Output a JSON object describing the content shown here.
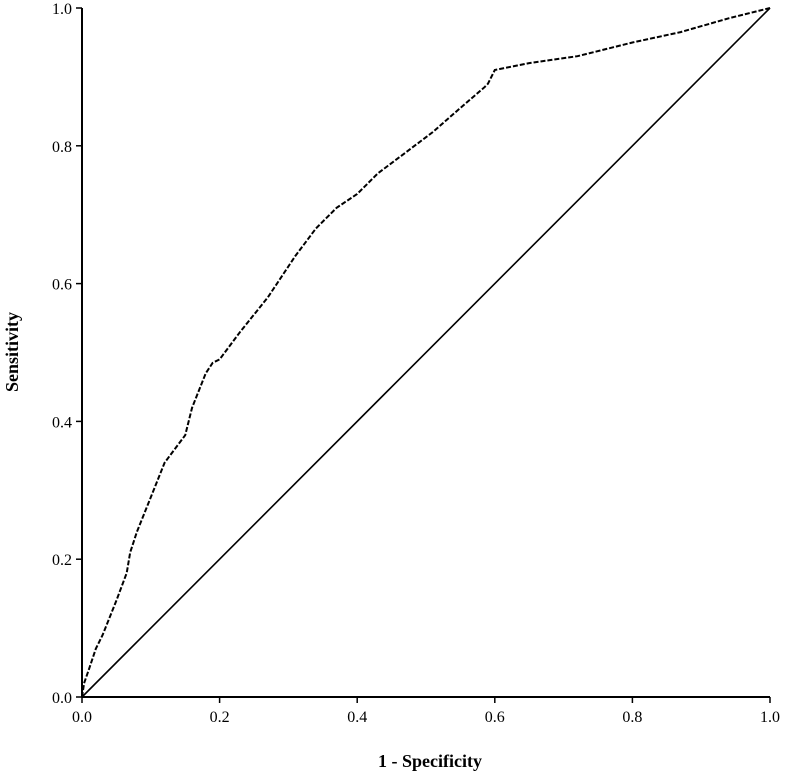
{
  "chart_data": {
    "type": "line",
    "title": "",
    "xlabel": "1 - Specificity",
    "ylabel": "Sensitivity",
    "xlim": [
      0.0,
      1.0
    ],
    "ylim": [
      0.0,
      1.0
    ],
    "xticks": [
      "0.0",
      "0.2",
      "0.4",
      "0.6",
      "0.8",
      "1.0"
    ],
    "yticks": [
      "0.0",
      "0.2",
      "0.4",
      "0.6",
      "0.8",
      "1.0"
    ],
    "grid": false,
    "legend": "none",
    "series": [
      {
        "style": "dashed",
        "color": "#000000",
        "x": [
          0.0,
          0.003,
          0.01,
          0.02,
          0.03,
          0.05,
          0.065,
          0.07,
          0.08,
          0.1,
          0.12,
          0.15,
          0.16,
          0.18,
          0.19,
          0.2,
          0.23,
          0.27,
          0.31,
          0.34,
          0.37,
          0.4,
          0.43,
          0.47,
          0.51,
          0.55,
          0.585,
          0.59,
          0.6,
          0.65,
          0.72,
          0.8,
          0.87,
          0.94,
          1.0
        ],
        "y": [
          0.0,
          0.02,
          0.04,
          0.07,
          0.09,
          0.14,
          0.18,
          0.21,
          0.24,
          0.29,
          0.34,
          0.38,
          0.42,
          0.47,
          0.485,
          0.49,
          0.53,
          0.58,
          0.64,
          0.68,
          0.71,
          0.73,
          0.76,
          0.79,
          0.82,
          0.855,
          0.885,
          0.89,
          0.91,
          0.92,
          0.93,
          0.95,
          0.965,
          0.985,
          1.0
        ]
      },
      {
        "style": "solid",
        "color": "#000000",
        "x": [
          0.0,
          1.0
        ],
        "y": [
          0.0,
          1.0
        ]
      }
    ]
  }
}
